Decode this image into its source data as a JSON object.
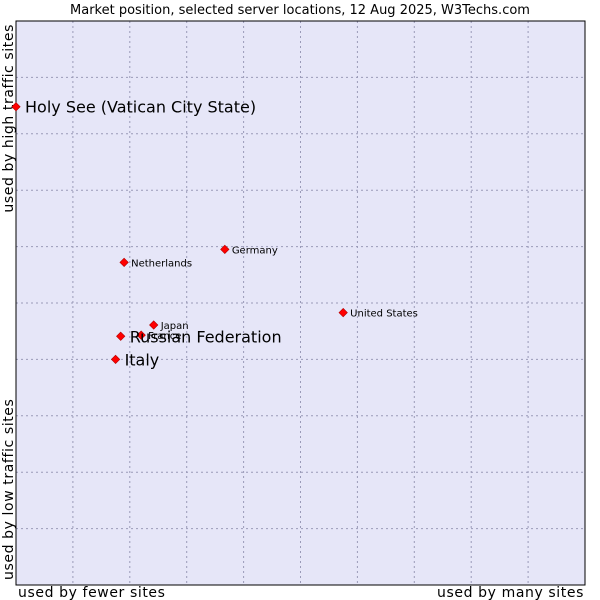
{
  "chart_data": {
    "type": "scatter",
    "title": "Market position, selected server locations, 12 Aug 2025, W3Techs.com",
    "xlabel_low": "used by fewer sites",
    "xlabel_high": "used by many sites",
    "ylabel_low": "used by low traffic sites",
    "ylabel_high": "used by high traffic sites",
    "xlim": [
      0,
      100
    ],
    "ylim": [
      0,
      100
    ],
    "grid": true,
    "colors": {
      "plot_background": "#e6e6f8",
      "grid": "#9a9ab8",
      "border": "#000000",
      "marker": "#ff0000",
      "marker_edge": "#b00000"
    },
    "points": [
      {
        "name": "Holy See (Vatican City State)",
        "x": 0.0,
        "y": 84.8,
        "emphasis": true
      },
      {
        "name": "Germany",
        "x": 36.7,
        "y": 59.5,
        "emphasis": false
      },
      {
        "name": "Netherlands",
        "x": 19.0,
        "y": 57.2,
        "emphasis": false
      },
      {
        "name": "United States",
        "x": 57.5,
        "y": 48.3,
        "emphasis": false
      },
      {
        "name": "Japan",
        "x": 24.2,
        "y": 46.1,
        "emphasis": false
      },
      {
        "name": "France",
        "x": 22.0,
        "y": 44.3,
        "emphasis": false
      },
      {
        "name": "Russian Federation",
        "x": 18.4,
        "y": 44.1,
        "emphasis": true
      },
      {
        "name": "Italy",
        "x": 17.5,
        "y": 40.0,
        "emphasis": true
      }
    ]
  }
}
